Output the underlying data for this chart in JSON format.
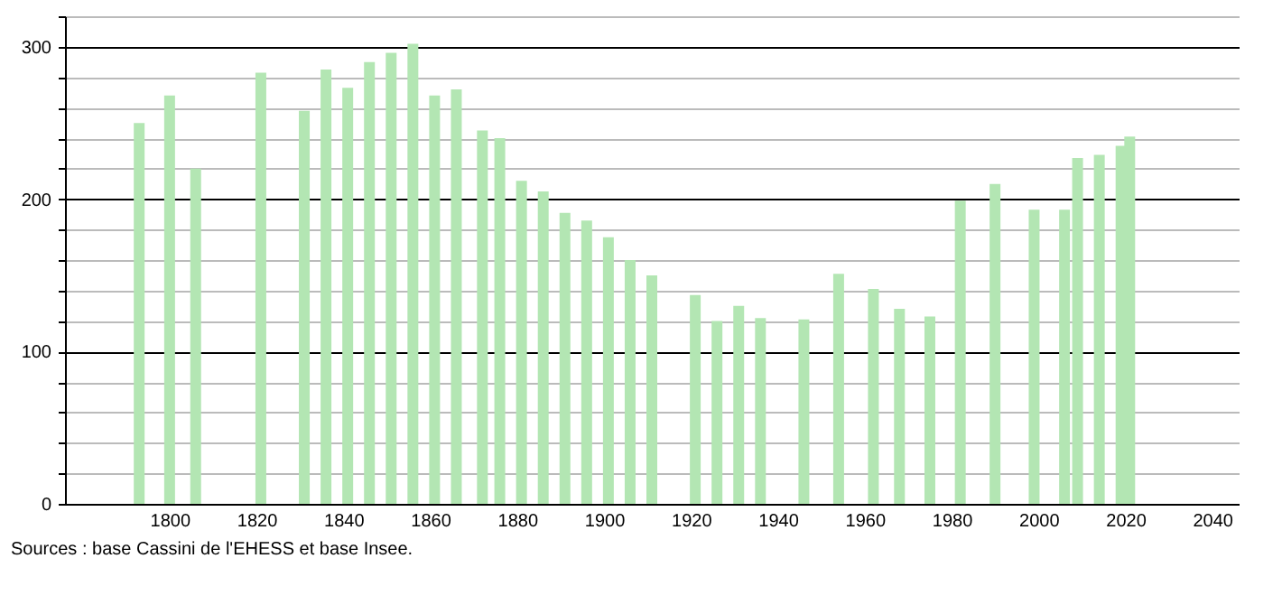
{
  "chart_data": {
    "type": "bar",
    "x": [
      1793,
      1800,
      1806,
      1821,
      1831,
      1836,
      1841,
      1846,
      1851,
      1856,
      1861,
      1866,
      1872,
      1876,
      1881,
      1886,
      1891,
      1896,
      1901,
      1906,
      1911,
      1921,
      1926,
      1931,
      1936,
      1946,
      1954,
      1962,
      1968,
      1975,
      1982,
      1990,
      1999,
      2006,
      2007,
      2008,
      2009,
      2014,
      2019,
      2021
    ],
    "values": [
      250,
      268,
      220,
      283,
      258,
      285,
      273,
      290,
      296,
      302,
      268,
      272,
      245,
      240,
      212,
      205,
      191,
      186,
      175,
      160,
      150,
      137,
      120,
      130,
      122,
      121,
      151,
      141,
      128,
      123,
      199,
      210,
      193,
      193,
      null,
      null,
      227,
      229,
      235,
      241
    ],
    "color": "#b3e6b3",
    "xlim": [
      1778,
      2044
    ],
    "xticks": [
      1800,
      1820,
      1840,
      1860,
      1880,
      1900,
      1920,
      1940,
      1960,
      1980,
      2000,
      2020,
      2040
    ],
    "ylim": [
      0,
      320
    ],
    "yticks": [
      0,
      {
        "value": 20,
        "label": null
      },
      {
        "value": 40,
        "label": null
      },
      {
        "value": 60,
        "label": null
      },
      {
        "value": 80,
        "label": null
      },
      100,
      {
        "value": 120,
        "label": null
      },
      {
        "value": 140,
        "label": null
      },
      {
        "value": 160,
        "label": null
      },
      {
        "value": 180,
        "label": null
      },
      200,
      {
        "value": 220,
        "label": null
      },
      {
        "value": 240,
        "label": null
      },
      {
        "value": 260,
        "label": null
      },
      {
        "value": 280,
        "label": null
      },
      300,
      {
        "value": 320,
        "label": null
      }
    ],
    "grid": "y",
    "annotations": [
      "Sources : base Cassini de l'EHESS et base Insee."
    ]
  }
}
